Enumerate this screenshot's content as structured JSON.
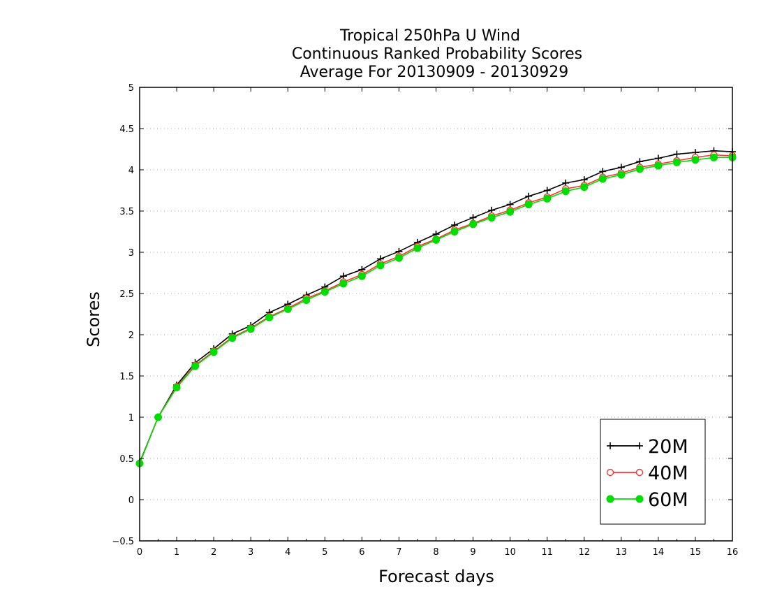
{
  "chart_data": {
    "type": "line",
    "title_lines": [
      "Tropical 250hPa U Wind",
      "Continuous Ranked Probability Scores",
      "Average For 20130909 - 20130929"
    ],
    "xlabel": "Forecast days",
    "ylabel": "Scores",
    "xlim": [
      0,
      16
    ],
    "ylim": [
      -0.5,
      5
    ],
    "xticks": [
      "0",
      "1",
      "2",
      "3",
      "4",
      "5",
      "6",
      "7",
      "8",
      "9",
      "10",
      "11",
      "12",
      "13",
      "14",
      "15",
      "16"
    ],
    "yticks": [
      "-0.5",
      "0",
      "0.5",
      "1",
      "1.5",
      "2",
      "2.5",
      "3",
      "3.5",
      "4",
      "4.5",
      "5"
    ],
    "grid": "horizontal dotted",
    "legend_position": "bottom-right",
    "x": [
      0,
      0.5,
      1,
      1.5,
      2,
      2.5,
      3,
      3.5,
      4,
      4.5,
      5,
      5.5,
      6,
      6.5,
      7,
      7.5,
      8,
      8.5,
      9,
      9.5,
      10,
      10.5,
      11,
      11.5,
      12,
      12.5,
      13,
      13.5,
      14,
      14.5,
      15,
      15.5,
      16
    ],
    "series": [
      {
        "name": "20M",
        "color": "#000000",
        "marker": "plus",
        "values": [
          0.45,
          1.0,
          1.39,
          1.66,
          1.83,
          2.01,
          2.11,
          2.27,
          2.37,
          2.48,
          2.58,
          2.71,
          2.79,
          2.92,
          3.01,
          3.12,
          3.22,
          3.33,
          3.42,
          3.51,
          3.58,
          3.68,
          3.75,
          3.84,
          3.88,
          3.98,
          4.03,
          4.1,
          4.14,
          4.19,
          4.21,
          4.23,
          4.22
        ]
      },
      {
        "name": "40M",
        "color": "#ff3333",
        "marker": "open-circle",
        "values": [
          0.44,
          1.0,
          1.37,
          1.63,
          1.8,
          1.97,
          2.08,
          2.22,
          2.32,
          2.44,
          2.53,
          2.64,
          2.73,
          2.86,
          2.95,
          3.07,
          3.16,
          3.27,
          3.35,
          3.44,
          3.51,
          3.6,
          3.67,
          3.77,
          3.81,
          3.91,
          3.96,
          4.03,
          4.07,
          4.11,
          4.15,
          4.18,
          4.17
        ]
      },
      {
        "name": "60M",
        "color": "#00dd00",
        "marker": "filled-circle",
        "values": [
          0.44,
          1.0,
          1.36,
          1.62,
          1.79,
          1.96,
          2.07,
          2.21,
          2.31,
          2.42,
          2.52,
          2.62,
          2.71,
          2.84,
          2.93,
          3.05,
          3.15,
          3.25,
          3.34,
          3.42,
          3.49,
          3.58,
          3.65,
          3.74,
          3.79,
          3.89,
          3.94,
          4.01,
          4.05,
          4.09,
          4.12,
          4.15,
          4.15
        ]
      }
    ]
  }
}
